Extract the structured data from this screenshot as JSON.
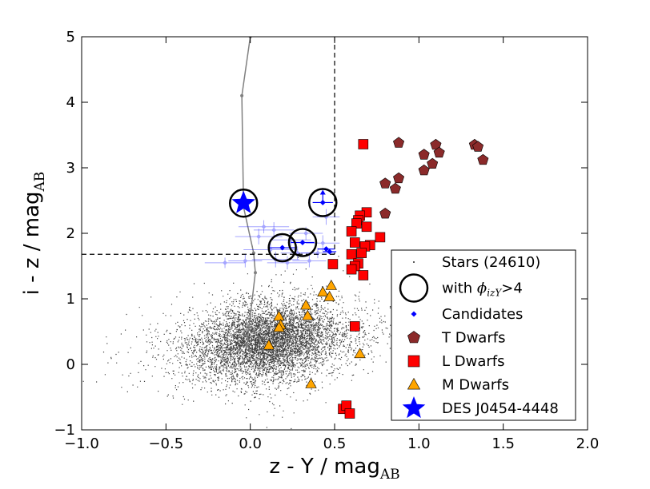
{
  "chart_data": {
    "type": "scatter",
    "xlabel": "z - Y / mag",
    "xlabel_sub": "AB",
    "ylabel": "i - z / mag",
    "ylabel_sub": "AB",
    "xlim": [
      -1.0,
      2.0
    ],
    "ylim": [
      -1,
      5
    ],
    "x_ticks": [
      -1.0,
      -0.5,
      0.0,
      0.5,
      1.0,
      1.5,
      2.0
    ],
    "x_tick_labels": [
      "−1.0",
      "−0.5",
      "0.0",
      "0.5",
      "1.0",
      "1.5",
      "2.0"
    ],
    "y_ticks": [
      -1,
      0,
      1,
      2,
      3,
      4,
      5
    ],
    "y_tick_labels": [
      "−1",
      "0",
      "1",
      "2",
      "3",
      "4",
      "5"
    ],
    "grid": false,
    "legend_position": "lower-right",
    "colors": {
      "stars": "#000000",
      "candidates": "#0000ff",
      "t_dwarfs": "#8b2a2a",
      "l_dwarfs": "#ff0000",
      "m_dwarfs": "#ffa500",
      "target": "#0000ff",
      "track": "#808080"
    },
    "cuts": {
      "vertical_x": 0.5,
      "vertical_y_from": 1.68,
      "horizontal_y": 1.68,
      "horizontal_x_to": 0.5
    },
    "stars_cloud": {
      "count": 24610,
      "center": [
        0.1,
        0.35
      ],
      "spread": [
        0.22,
        0.28
      ]
    },
    "model_track": [
      [
        0.0,
        0.2
      ],
      [
        -0.02,
        0.3
      ],
      [
        0.03,
        1.4
      ],
      [
        0.02,
        1.7
      ],
      [
        -0.04,
        2.4
      ],
      [
        -0.05,
        4.1
      ],
      [
        0.0,
        5.0
      ]
    ],
    "candidates": [
      {
        "x": 0.43,
        "y": 2.47,
        "xerr": 0.06,
        "lower_limit": true
      },
      {
        "x": 0.19,
        "y": 1.78,
        "xerr": 0.08,
        "lower_limit": false
      },
      {
        "x": 0.31,
        "y": 1.86,
        "xerr": 0.07,
        "lower_limit": false
      },
      {
        "x": 0.45,
        "y": 1.76,
        "xerr": 0.05,
        "lower_limit": false
      },
      {
        "x": 0.47,
        "y": 1.72,
        "xerr": 0.04,
        "lower_limit": false
      }
    ],
    "faint_candidates": [
      {
        "x": 0.45,
        "y": 2.25,
        "xerr": 0.08,
        "yerr": 0.12
      },
      {
        "x": 0.08,
        "y": 2.1,
        "xerr": 0.15,
        "yerr": 0.1
      },
      {
        "x": 0.14,
        "y": 2.05,
        "xerr": 0.12,
        "yerr": 0.12
      },
      {
        "x": 0.33,
        "y": 2.0,
        "xerr": 0.1,
        "yerr": 0.1
      },
      {
        "x": 0.05,
        "y": 1.95,
        "xerr": 0.14,
        "yerr": 0.12
      },
      {
        "x": 0.24,
        "y": 1.9,
        "xerr": 0.12,
        "yerr": 0.1
      },
      {
        "x": 0.43,
        "y": 1.85,
        "xerr": 0.1,
        "yerr": 0.12
      },
      {
        "x": 0.12,
        "y": 1.75,
        "xerr": 0.16,
        "yerr": 0.1
      },
      {
        "x": 0.28,
        "y": 1.7,
        "xerr": 0.1,
        "yerr": 0.1
      },
      {
        "x": 0.4,
        "y": 1.7,
        "xerr": 0.1,
        "yerr": 0.08
      },
      {
        "x": -0.15,
        "y": 1.55,
        "xerr": 0.12,
        "yerr": 0.08
      },
      {
        "x": -0.03,
        "y": 1.58,
        "xerr": 0.1,
        "yerr": 0.1
      },
      {
        "x": 0.15,
        "y": 1.6,
        "xerr": 0.14,
        "yerr": 0.12
      },
      {
        "x": 0.22,
        "y": 1.55,
        "xerr": 0.12,
        "yerr": 0.1
      },
      {
        "x": 0.35,
        "y": 1.58,
        "xerr": 0.1,
        "yerr": 0.1
      }
    ],
    "phi_circles": [
      {
        "x": 0.43,
        "y": 2.47
      },
      {
        "x": 0.19,
        "y": 1.78
      },
      {
        "x": 0.31,
        "y": 1.86
      },
      {
        "x": -0.04,
        "y": 2.46
      }
    ],
    "t_dwarfs": [
      [
        0.88,
        3.38
      ],
      [
        1.1,
        3.35
      ],
      [
        1.33,
        3.35
      ],
      [
        1.35,
        3.32
      ],
      [
        1.03,
        3.2
      ],
      [
        1.12,
        3.23
      ],
      [
        1.08,
        3.06
      ],
      [
        1.03,
        2.96
      ],
      [
        1.38,
        3.12
      ],
      [
        0.88,
        2.84
      ],
      [
        0.8,
        2.76
      ],
      [
        0.86,
        2.68
      ],
      [
        0.8,
        2.3
      ]
    ],
    "l_dwarfs": [
      [
        0.67,
        3.36
      ],
      [
        0.69,
        2.32
      ],
      [
        0.65,
        2.27
      ],
      [
        0.64,
        2.2
      ],
      [
        0.69,
        2.1
      ],
      [
        0.63,
        2.15
      ],
      [
        0.6,
        2.03
      ],
      [
        0.77,
        1.94
      ],
      [
        0.62,
        1.86
      ],
      [
        0.71,
        1.82
      ],
      [
        0.68,
        1.8
      ],
      [
        0.66,
        1.7
      ],
      [
        0.6,
        1.68
      ],
      [
        0.64,
        1.54
      ],
      [
        0.62,
        1.5
      ],
      [
        0.6,
        1.45
      ],
      [
        0.49,
        1.53
      ],
      [
        0.67,
        1.36
      ],
      [
        0.62,
        0.58
      ],
      [
        0.55,
        -0.68
      ],
      [
        0.57,
        -0.63
      ],
      [
        0.59,
        -0.75
      ]
    ],
    "m_dwarfs": [
      [
        0.17,
        0.73
      ],
      [
        0.33,
        0.9
      ],
      [
        0.43,
        1.1
      ],
      [
        0.48,
        1.2
      ],
      [
        0.47,
        1.03
      ],
      [
        0.34,
        0.74
      ],
      [
        0.18,
        0.6
      ],
      [
        0.17,
        0.56
      ],
      [
        0.11,
        0.29
      ],
      [
        0.65,
        0.16
      ],
      [
        0.36,
        -0.3
      ]
    ],
    "target": {
      "x": -0.04,
      "y": 2.46
    },
    "legend": [
      {
        "key": "stars",
        "label": "Stars (24610)"
      },
      {
        "key": "phi",
        "label_prefix": "with ",
        "label_math": "ϕ",
        "label_math_sub": "izY",
        "label_suffix": ">4"
      },
      {
        "key": "candidates",
        "label": "Candidates"
      },
      {
        "key": "t_dwarfs",
        "label": "T Dwarfs"
      },
      {
        "key": "l_dwarfs",
        "label": "L Dwarfs"
      },
      {
        "key": "m_dwarfs",
        "label": "M Dwarfs"
      },
      {
        "key": "target",
        "label": "DES J0454-4448"
      }
    ]
  }
}
